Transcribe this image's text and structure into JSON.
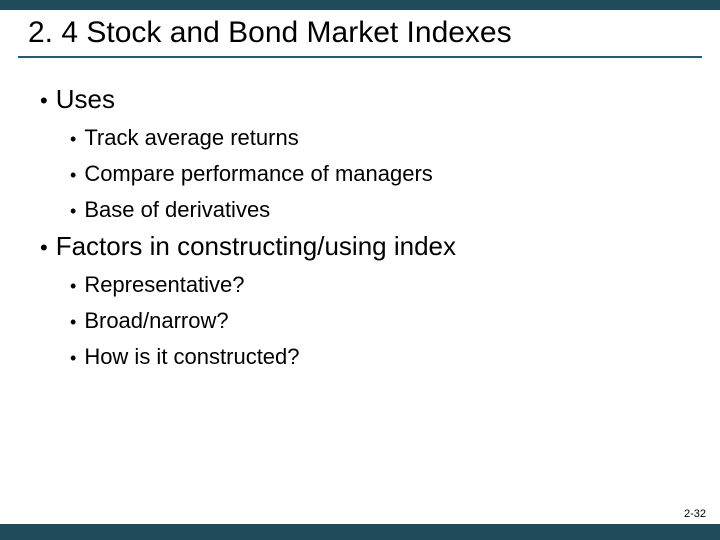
{
  "colors": {
    "bar": "#204b5b",
    "underline": "#2a5a6e",
    "background": "#ffffff",
    "text": "#000000"
  },
  "title": "2. 4 Stock and Bond Market Indexes",
  "page_number": "2-32",
  "bullets": [
    {
      "text": "Uses",
      "children": [
        {
          "text": "Track average returns"
        },
        {
          "text": "Compare performance of managers"
        },
        {
          "text": "Base of derivatives"
        }
      ]
    },
    {
      "text": "Factors in constructing/using index",
      "children": [
        {
          "text": "Representative?"
        },
        {
          "text": "Broad/narrow?"
        },
        {
          "text": "How is it constructed?"
        }
      ]
    }
  ]
}
